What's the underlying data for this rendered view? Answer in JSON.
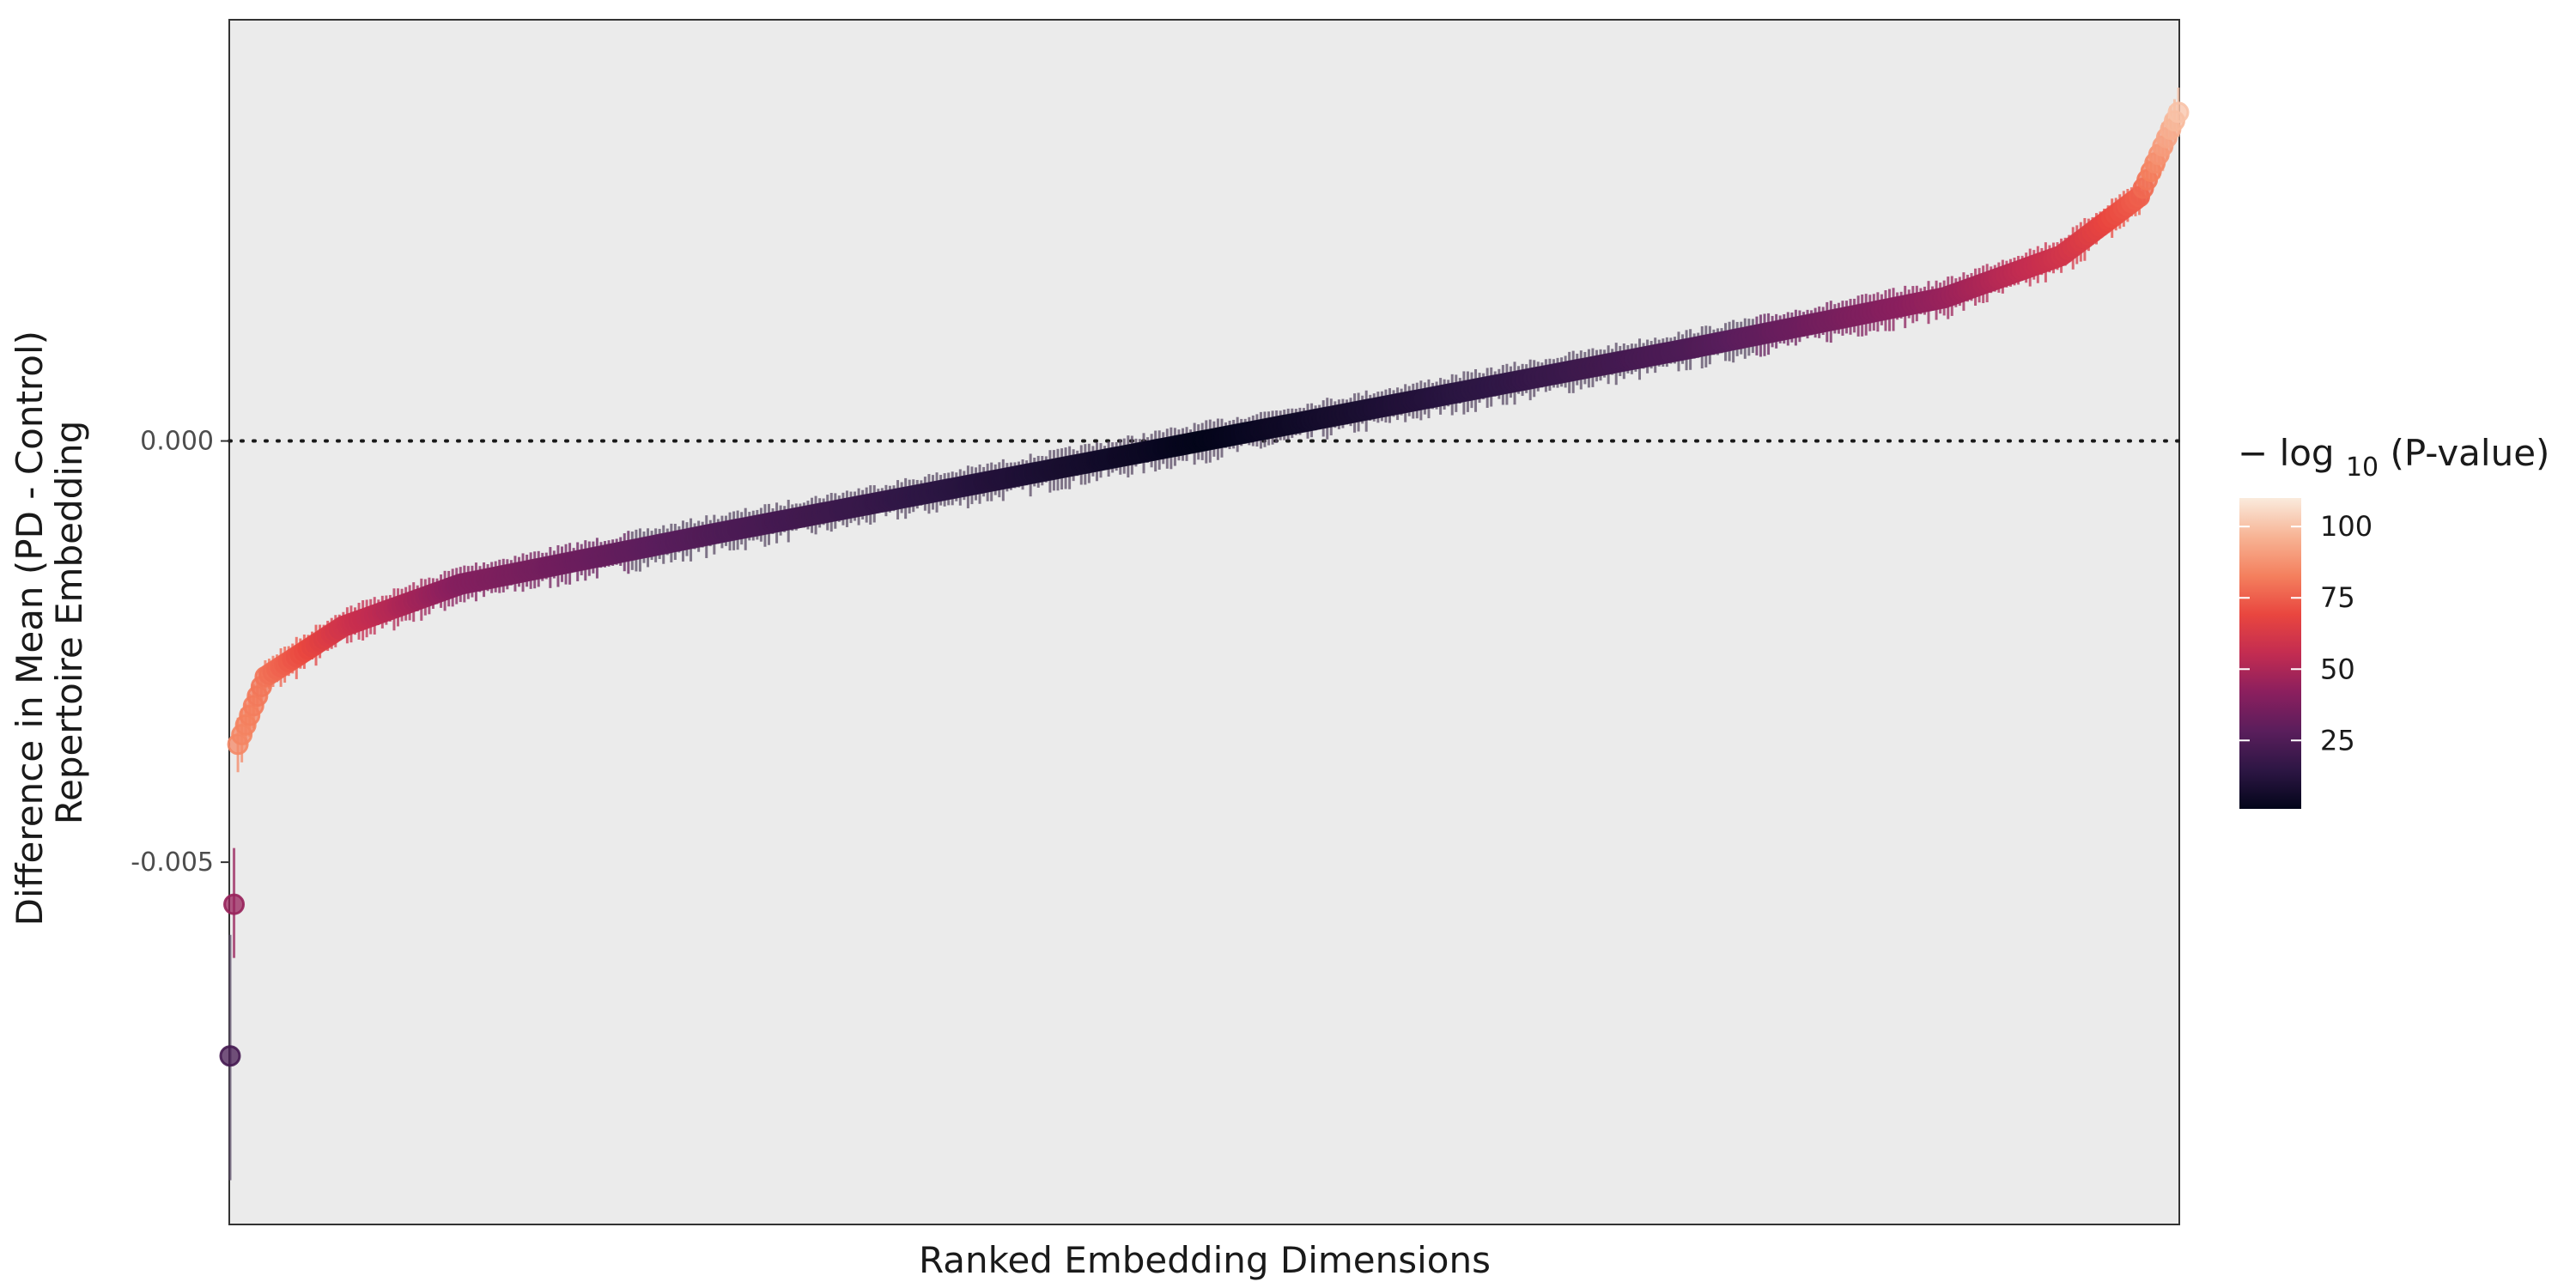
{
  "chart_data": {
    "type": "scatter",
    "title": "",
    "xlabel": "Ranked Embedding Dimensions",
    "ylabel_lines": [
      "Difference in Mean (PD - Control)",
      "Repertoire Embedding"
    ],
    "ylim": [
      -0.0093,
      0.005
    ],
    "yticks": [
      {
        "value": 0.0,
        "label": "0.000"
      },
      {
        "value": -0.005,
        "label": "-0.005"
      }
    ],
    "x_ticks_shown": false,
    "reference_line": {
      "y": 0.0,
      "style": "dotted"
    },
    "panel_background": "#ebebeb",
    "n_points": 500,
    "series": [
      {
        "description_points": [
          {
            "rank": 1,
            "diff": -0.0073,
            "ci_low": -0.0087,
            "ci_high": -0.0059,
            "neg_log10_p": 22
          },
          {
            "rank": 2,
            "diff": -0.0055,
            "ci_low": -0.0062,
            "ci_high": -0.0048,
            "neg_log10_p": 45
          },
          {
            "rank": 3,
            "diff": -0.0036,
            "ci_low": -0.0039,
            "ci_high": -0.0033,
            "neg_log10_p": 85
          },
          {
            "rank": 10,
            "diff": -0.0028,
            "ci_low": -0.003,
            "ci_high": -0.0026,
            "neg_log10_p": 80
          },
          {
            "rank": 30,
            "diff": -0.0022,
            "ci_low": -0.0024,
            "ci_high": -0.002,
            "neg_log10_p": 60
          },
          {
            "rank": 60,
            "diff": -0.0017,
            "ci_low": -0.0019,
            "ci_high": -0.0015,
            "neg_log10_p": 40
          },
          {
            "rank": 125,
            "diff": -0.0011,
            "ci_low": -0.0013,
            "ci_high": -0.0009,
            "neg_log10_p": 25
          },
          {
            "rank": 250,
            "diff": 0.0,
            "ci_low": -0.0002,
            "ci_high": 0.0002,
            "neg_log10_p": 1
          },
          {
            "rank": 375,
            "diff": 0.0011,
            "ci_low": 0.0009,
            "ci_high": 0.0013,
            "neg_log10_p": 25
          },
          {
            "rank": 440,
            "diff": 0.0017,
            "ci_low": 0.0015,
            "ci_high": 0.0019,
            "neg_log10_p": 45
          },
          {
            "rank": 470,
            "diff": 0.0022,
            "ci_low": 0.002,
            "ci_high": 0.0024,
            "neg_log10_p": 60
          },
          {
            "rank": 490,
            "diff": 0.0029,
            "ci_low": 0.0027,
            "ci_high": 0.0031,
            "neg_log10_p": 75
          },
          {
            "rank": 500,
            "diff": 0.0039,
            "ci_low": 0.0036,
            "ci_high": 0.0042,
            "neg_log10_p": 100
          }
        ]
      }
    ],
    "color_scale": {
      "title_prefix": "−",
      "title_log": "log",
      "title_sub": "10",
      "title_suffix": " (P-value)",
      "range": [
        1,
        110
      ],
      "breaks": [
        25,
        50,
        75,
        100
      ],
      "stops": [
        "#03051a",
        "#2d1644",
        "#5a1e5c",
        "#8b1f5e",
        "#c32c51",
        "#e9463f",
        "#f4805e",
        "#f7b394",
        "#faebdd"
      ]
    }
  }
}
